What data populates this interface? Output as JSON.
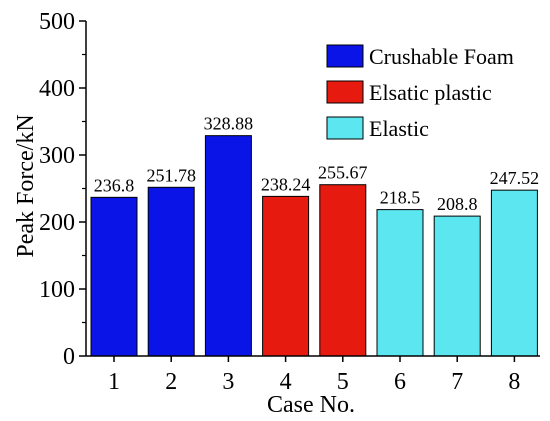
{
  "chart_data": {
    "type": "bar",
    "categories": [
      "1",
      "2",
      "3",
      "4",
      "5",
      "6",
      "7",
      "8"
    ],
    "values": [
      236.8,
      251.78,
      328.88,
      238.24,
      255.67,
      218.5,
      208.8,
      247.52
    ],
    "value_labels": [
      "236.8",
      "251.78",
      "328.88",
      "238.24",
      "255.67",
      "218.5",
      "208.8",
      "247.52"
    ],
    "groups": [
      "Crushable Foam",
      "Crushable Foam",
      "Crushable Foam",
      "Elsatic plastic",
      "Elsatic plastic",
      "Elastic",
      "Elastic",
      "Elastic"
    ],
    "xlabel": "Case No.",
    "ylabel": "Peak Force/kN",
    "ylim": [
      0,
      500
    ],
    "yticks": [
      "0",
      "100",
      "200",
      "300",
      "400",
      "500"
    ],
    "grid": false,
    "legend_position": "top-right",
    "legend": [
      {
        "name": "Crushable Foam",
        "color": "#0a14e6"
      },
      {
        "name": "Elsatic plastic",
        "color": "#e61a0f"
      },
      {
        "name": "Elastic",
        "color": "#5ce6f0"
      }
    ]
  }
}
